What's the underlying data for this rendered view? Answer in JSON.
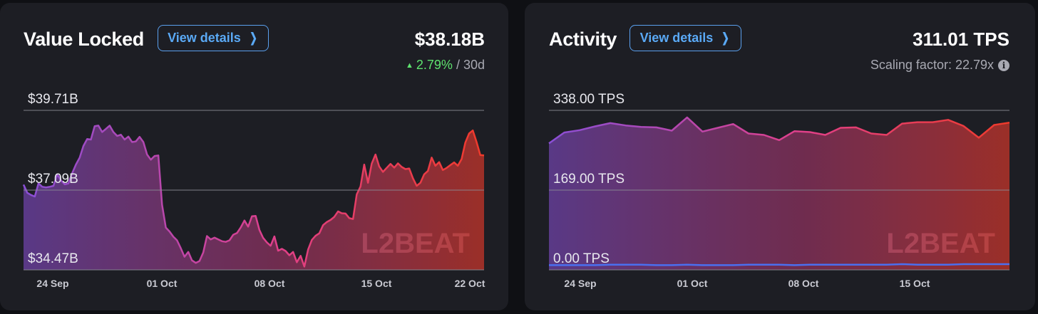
{
  "tvl_card": {
    "title": "Value Locked",
    "button_label": "View details",
    "value": "$38.18B",
    "change": "2.79%",
    "period": "/ 30d"
  },
  "activity_card": {
    "title": "Activity",
    "button_label": "View details",
    "value": "311.01 TPS",
    "scaling": "Scaling factor: 22.79x"
  },
  "watermark": "L2BEAT",
  "colors": {
    "start": "#8a4fd6",
    "mid": "#e0408a",
    "end": "#ef3a2a",
    "ethereum_line": "#4a6ff0",
    "up": "#5ee36e",
    "button": "#5aa9f5"
  },
  "chart_data": [
    {
      "type": "area",
      "name": "Value Locked",
      "y_tick_labels": [
        "$39.71B",
        "$37.09B",
        "$34.47B"
      ],
      "x_tick_labels": [
        "24 Sep",
        "01 Oct",
        "08 Oct",
        "15 Oct",
        "22 Oct"
      ],
      "ylim": [
        34.47,
        39.71
      ],
      "grid": true,
      "values": [
        37.27,
        37.0,
        36.93,
        36.88,
        37.31,
        37.2,
        37.18,
        37.2,
        37.23,
        37.61,
        37.41,
        37.28,
        37.31,
        37.65,
        37.93,
        38.16,
        38.54,
        38.77,
        38.75,
        39.19,
        39.21,
        39.0,
        39.1,
        39.21,
        39.0,
        38.87,
        38.91,
        38.75,
        38.85,
        38.67,
        38.69,
        38.84,
        38.67,
        38.26,
        38.09,
        38.21,
        38.23,
        36.61,
        35.86,
        35.73,
        35.56,
        35.44,
        35.18,
        34.9,
        35.06,
        34.78,
        34.7,
        34.76,
        35.04,
        35.58,
        35.47,
        35.53,
        35.47,
        35.41,
        35.39,
        35.44,
        35.62,
        35.68,
        35.86,
        36.09,
        35.89,
        36.23,
        36.24,
        35.78,
        35.52,
        35.37,
        35.26,
        35.57,
        35.1,
        35.16,
        35.09,
        34.95,
        35.06,
        34.72,
        34.93,
        34.58,
        35.14,
        35.45,
        35.59,
        35.67,
        35.94,
        36.04,
        36.11,
        36.21,
        36.39,
        36.33,
        36.32,
        36.17,
        36.14,
        36.95,
        37.21,
        37.93,
        37.33,
        37.96,
        38.26,
        37.87,
        37.69,
        37.82,
        37.95,
        37.83,
        37.97,
        37.85,
        37.78,
        37.8,
        37.48,
        37.23,
        37.33,
        37.61,
        37.72,
        38.16,
        37.89,
        38.01,
        37.75,
        37.82,
        37.91,
        38.0,
        37.89,
        38.11,
        38.65,
        38.95,
        39.05,
        38.67,
        38.24,
        38.23
      ]
    },
    {
      "type": "area",
      "name": "Activity",
      "y_tick_labels": [
        "338.00 TPS",
        "169.00 TPS",
        "0.00 TPS"
      ],
      "x_tick_labels": [
        "24 Sep",
        "01 Oct",
        "08 Oct",
        "15 Oct"
      ],
      "ylim": [
        0,
        338
      ],
      "grid": true,
      "values": [
        268,
        291,
        296,
        304,
        311,
        306,
        303,
        302,
        295,
        323,
        293,
        301,
        309,
        289,
        286,
        275,
        294,
        292,
        286,
        301,
        302,
        289,
        286,
        310,
        313,
        313,
        318,
        305,
        280,
        307,
        312
      ],
      "baseline_values": [
        10,
        10,
        10,
        10,
        11,
        11,
        11,
        10,
        10,
        11,
        10,
        10,
        10,
        11,
        11,
        11,
        10,
        11,
        11,
        11,
        11,
        11,
        11,
        12,
        11,
        11,
        11,
        12,
        12,
        12,
        12
      ]
    }
  ]
}
